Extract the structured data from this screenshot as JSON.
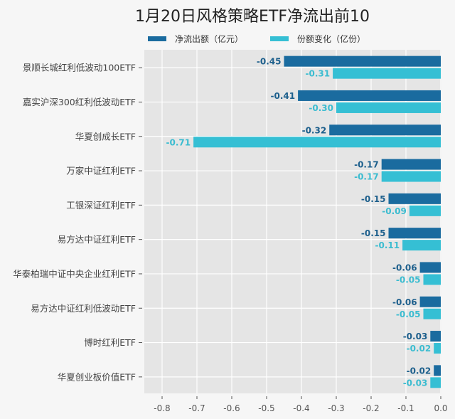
{
  "chart_data": {
    "type": "bar",
    "orientation": "horizontal",
    "title": "1月20日风格策略ETF净流出前10",
    "categories": [
      "景顺长城红利低波动100ETF",
      "嘉实沪深300红利低波动ETF",
      "华夏创成长ETF",
      "万家中证红利ETF",
      "工银深证红利ETF",
      "易方达中证红利ETF",
      "华泰柏瑞中证中央企业红利ETF",
      "易方达中证红利低波动ETF",
      "博时红利ETF",
      "华夏创业板价值ETF"
    ],
    "series": [
      {
        "name": "净流出额（亿元）",
        "color": "#1a6b9f",
        "values": [
          -0.45,
          -0.41,
          -0.32,
          -0.17,
          -0.15,
          -0.15,
          -0.06,
          -0.06,
          -0.03,
          -0.02
        ],
        "labels": [
          "-0.45",
          "-0.41",
          "-0.32",
          "-0.17",
          "-0.15",
          "-0.15",
          "-0.06",
          "-0.06",
          "-0.03",
          "-0.02"
        ]
      },
      {
        "name": "份额变化（亿份）",
        "color": "#35bfd4",
        "values": [
          -0.31,
          -0.3,
          -0.71,
          -0.17,
          -0.09,
          -0.11,
          -0.05,
          -0.05,
          -0.02,
          -0.03
        ],
        "labels": [
          "-0.31",
          "-0.30",
          "-0.71",
          "-0.17",
          "-0.09",
          "-0.11",
          "-0.05",
          "-0.05",
          "-0.02",
          "-0.03"
        ]
      }
    ],
    "xlim": [
      -0.85,
      0.0
    ],
    "xticks": [
      -0.8,
      -0.7,
      -0.6,
      -0.5,
      -0.4,
      -0.3,
      -0.2,
      -0.1,
      0.0
    ],
    "xtick_labels": [
      "-0.8",
      "-0.7",
      "-0.6",
      "-0.5",
      "-0.4",
      "-0.3",
      "-0.2",
      "-0.1",
      "0.0"
    ],
    "xlabel": "",
    "ylabel": "",
    "grid": true,
    "legend_position": "top"
  },
  "colors": {
    "plot_bg": "#e5e5e5",
    "page_bg": "#f6f6f6",
    "grid": "#ffffff"
  }
}
